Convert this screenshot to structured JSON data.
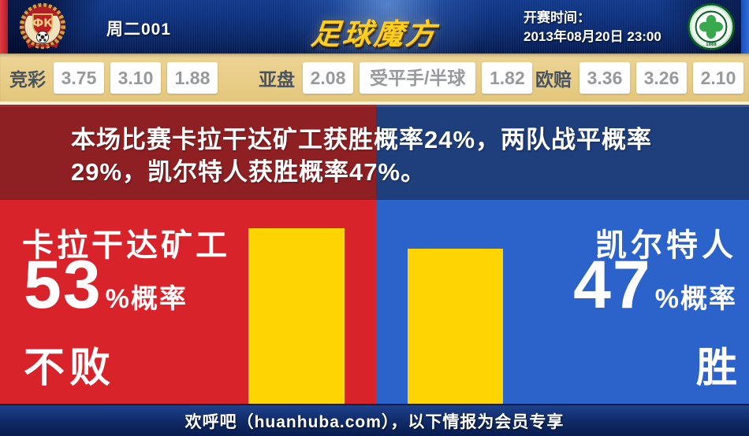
{
  "header": {
    "match_label": "周二001",
    "site_logo": "足球魔方",
    "kickoff_label": "开赛时间：",
    "kickoff_time": "2013年08月20日 23:00",
    "home_badge": "shakhter-karagandy-crest",
    "away_badge": "celtic-fc-crest"
  },
  "odds": {
    "jingcai": {
      "label": "竞彩",
      "values": [
        "3.75",
        "3.10",
        "1.88"
      ]
    },
    "yapan": {
      "label": "亚盘",
      "values": [
        "2.08",
        "受平手/半球",
        "1.82"
      ]
    },
    "oupei": {
      "label": "欧赔",
      "values": [
        "3.36",
        "3.26",
        "2.10"
      ]
    }
  },
  "summary": {
    "lines": [
      "本场比赛卡拉干达矿工获胜概率24%，两队战平概率",
      "29%，凯尔特人获胜概率47%。"
    ]
  },
  "prediction": {
    "home": {
      "team": "卡拉干达矿工",
      "percent": "53",
      "suffix": "%概率",
      "outcome": "不败",
      "bar_percent": 53
    },
    "away": {
      "team": "凯尔特人",
      "percent": "47",
      "suffix": "%概率",
      "outcome": "胜",
      "bar_percent": 47
    }
  },
  "footer": {
    "text": "欢呼吧（huanhuba.com），以下情报为会员专享"
  },
  "colors": {
    "header_navy": "#0d2f78",
    "edge_red": "#c0242b",
    "edge_blue": "#2f6de0",
    "odds_bg": "#e8cd87",
    "odds_value_gray": "#97999c",
    "maroon_band": "#8e2023",
    "dark_blue_band": "#1f3e7c",
    "bright_red": "#d8232b",
    "bright_blue": "#2b63cb",
    "bar_yellow": "#ffd402",
    "logo_gold": "#ffce1f",
    "footer_navy": "#102a66"
  }
}
